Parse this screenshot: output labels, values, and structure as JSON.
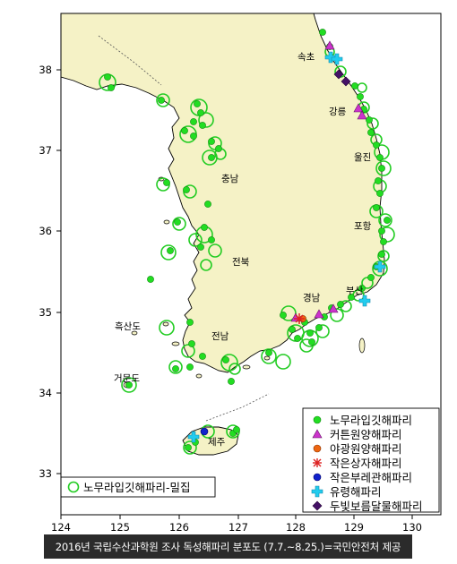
{
  "axes": {
    "lon_ticks": [
      "124",
      "125",
      "126",
      "127",
      "128",
      "129",
      "130"
    ],
    "lat_ticks": [
      "38",
      "37",
      "36",
      "35",
      "34",
      "33"
    ]
  },
  "places": {
    "sokcho": "속초",
    "gangneung": "강릉",
    "uljin": "울진",
    "chungnam": "충남",
    "pohang": "포항",
    "jeonbuk": "전북",
    "gyeongnam": "경남",
    "busan": "부산",
    "heuksando": "흑산도",
    "jeonnam": "전남",
    "geomundo": "거문도",
    "jeju": "제주"
  },
  "legend": {
    "items": [
      {
        "label": "노무라입깃해파리",
        "color": "#22dd22",
        "symbol": "circle"
      },
      {
        "label": "커튼원양해파리",
        "color": "#cc33cc",
        "symbol": "triangle"
      },
      {
        "label": "야광원양해파리",
        "color": "#ee6611",
        "symbol": "circle"
      },
      {
        "label": "작은상자해파리",
        "color": "#dd2222",
        "symbol": "asterisk"
      },
      {
        "label": "작은부레관해파리",
        "color": "#1122cc",
        "symbol": "circle"
      },
      {
        "label": "유령해파리",
        "color": "#22ccee",
        "symbol": "cross"
      },
      {
        "label": "두빛보름달물해파리",
        "color": "#441166",
        "symbol": "diamond"
      }
    ],
    "dense_label": "노무라입깃해파리-밀집",
    "dense_color": "#22cc22"
  },
  "colors": {
    "land": "#f5f2c6",
    "sea": "#ffffff",
    "frame": "#000000"
  },
  "caption": "2016년 국립수산과학원 조사 독성해파리 분포도 (7.7.~8.25.)=국민안전처 제공"
}
